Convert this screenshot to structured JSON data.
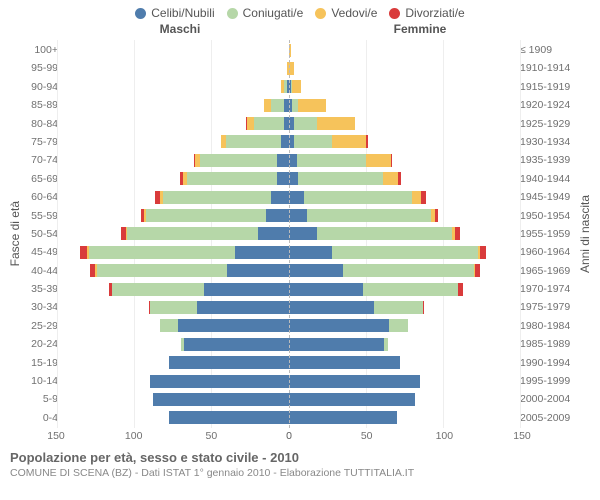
{
  "chart": {
    "type": "population-pyramid",
    "legend": [
      {
        "label": "Celibi/Nubili",
        "color": "#4f7cac"
      },
      {
        "label": "Coniugati/e",
        "color": "#b6d7a8"
      },
      {
        "label": "Vedovi/e",
        "color": "#f6c35b"
      },
      {
        "label": "Divorziati/e",
        "color": "#d93b3b"
      }
    ],
    "gender_left": "Maschi",
    "gender_right": "Femmine",
    "y_left_title": "Fasce di età",
    "y_right_title": "Anni di nascita",
    "age_labels": [
      "100+",
      "95-99",
      "90-94",
      "85-89",
      "80-84",
      "75-79",
      "70-74",
      "65-69",
      "60-64",
      "55-59",
      "50-54",
      "45-49",
      "40-44",
      "35-39",
      "30-34",
      "25-29",
      "20-24",
      "15-19",
      "10-14",
      "5-9",
      "0-4"
    ],
    "birth_labels": [
      "≤ 1909",
      "1910-1914",
      "1915-1919",
      "1920-1924",
      "1925-1929",
      "1930-1934",
      "1935-1939",
      "1940-1944",
      "1945-1949",
      "1950-1954",
      "1955-1959",
      "1960-1964",
      "1965-1969",
      "1970-1974",
      "1975-1979",
      "1980-1984",
      "1985-1989",
      "1990-1994",
      "1995-1999",
      "2000-2004",
      "2005-2009"
    ],
    "x_ticks_left": [
      150,
      100,
      50,
      0
    ],
    "x_ticks_right": [
      0,
      50,
      100,
      150
    ],
    "x_max": 150,
    "colors": {
      "single": "#4f7cac",
      "married": "#b6d7a8",
      "widowed": "#f6c35b",
      "divorced": "#d93b3b",
      "grid": "#eeeeee",
      "midline": "#bbbbbb",
      "bg": "#ffffff"
    },
    "males": [
      {
        "s": 0,
        "m": 0,
        "w": 0,
        "d": 0
      },
      {
        "s": 0,
        "m": 0,
        "w": 1,
        "d": 0
      },
      {
        "s": 1,
        "m": 2,
        "w": 2,
        "d": 0
      },
      {
        "s": 3,
        "m": 9,
        "w": 4,
        "d": 0
      },
      {
        "s": 3,
        "m": 20,
        "w": 4,
        "d": 1
      },
      {
        "s": 5,
        "m": 36,
        "w": 3,
        "d": 0
      },
      {
        "s": 8,
        "m": 50,
        "w": 3,
        "d": 1
      },
      {
        "s": 8,
        "m": 58,
        "w": 3,
        "d": 2
      },
      {
        "s": 12,
        "m": 70,
        "w": 2,
        "d": 3
      },
      {
        "s": 15,
        "m": 78,
        "w": 1,
        "d": 2
      },
      {
        "s": 20,
        "m": 85,
        "w": 1,
        "d": 3
      },
      {
        "s": 35,
        "m": 95,
        "w": 1,
        "d": 5
      },
      {
        "s": 40,
        "m": 85,
        "w": 1,
        "d": 3
      },
      {
        "s": 55,
        "m": 60,
        "w": 0,
        "d": 2
      },
      {
        "s": 60,
        "m": 30,
        "w": 0,
        "d": 1
      },
      {
        "s": 72,
        "m": 12,
        "w": 0,
        "d": 0
      },
      {
        "s": 68,
        "m": 2,
        "w": 0,
        "d": 0
      },
      {
        "s": 78,
        "m": 0,
        "w": 0,
        "d": 0
      },
      {
        "s": 90,
        "m": 0,
        "w": 0,
        "d": 0
      },
      {
        "s": 88,
        "m": 0,
        "w": 0,
        "d": 0
      },
      {
        "s": 78,
        "m": 0,
        "w": 0,
        "d": 0
      }
    ],
    "females": [
      {
        "s": 0,
        "m": 0,
        "w": 1,
        "d": 0
      },
      {
        "s": 0,
        "m": 0,
        "w": 3,
        "d": 0
      },
      {
        "s": 1,
        "m": 1,
        "w": 6,
        "d": 0
      },
      {
        "s": 2,
        "m": 4,
        "w": 18,
        "d": 0
      },
      {
        "s": 3,
        "m": 15,
        "w": 25,
        "d": 0
      },
      {
        "s": 3,
        "m": 25,
        "w": 22,
        "d": 1
      },
      {
        "s": 5,
        "m": 45,
        "w": 16,
        "d": 1
      },
      {
        "s": 6,
        "m": 55,
        "w": 10,
        "d": 2
      },
      {
        "s": 10,
        "m": 70,
        "w": 6,
        "d": 3
      },
      {
        "s": 12,
        "m": 80,
        "w": 3,
        "d": 2
      },
      {
        "s": 18,
        "m": 88,
        "w": 2,
        "d": 3
      },
      {
        "s": 28,
        "m": 95,
        "w": 1,
        "d": 4
      },
      {
        "s": 35,
        "m": 85,
        "w": 1,
        "d": 3
      },
      {
        "s": 48,
        "m": 62,
        "w": 0,
        "d": 3
      },
      {
        "s": 55,
        "m": 32,
        "w": 0,
        "d": 1
      },
      {
        "s": 65,
        "m": 12,
        "w": 0,
        "d": 0
      },
      {
        "s": 62,
        "m": 2,
        "w": 0,
        "d": 0
      },
      {
        "s": 72,
        "m": 0,
        "w": 0,
        "d": 0
      },
      {
        "s": 85,
        "m": 0,
        "w": 0,
        "d": 0
      },
      {
        "s": 82,
        "m": 0,
        "w": 0,
        "d": 0
      },
      {
        "s": 70,
        "m": 0,
        "w": 0,
        "d": 0
      }
    ],
    "title": "Popolazione per età, sesso e stato civile - 2010",
    "subtitle": "COMUNE DI SCENA (BZ) - Dati ISTAT 1° gennaio 2010 - Elaborazione TUTTITALIA.IT",
    "fontsize_axis": 10.5,
    "fontsize_legend": 12,
    "fontsize_title": 13
  }
}
